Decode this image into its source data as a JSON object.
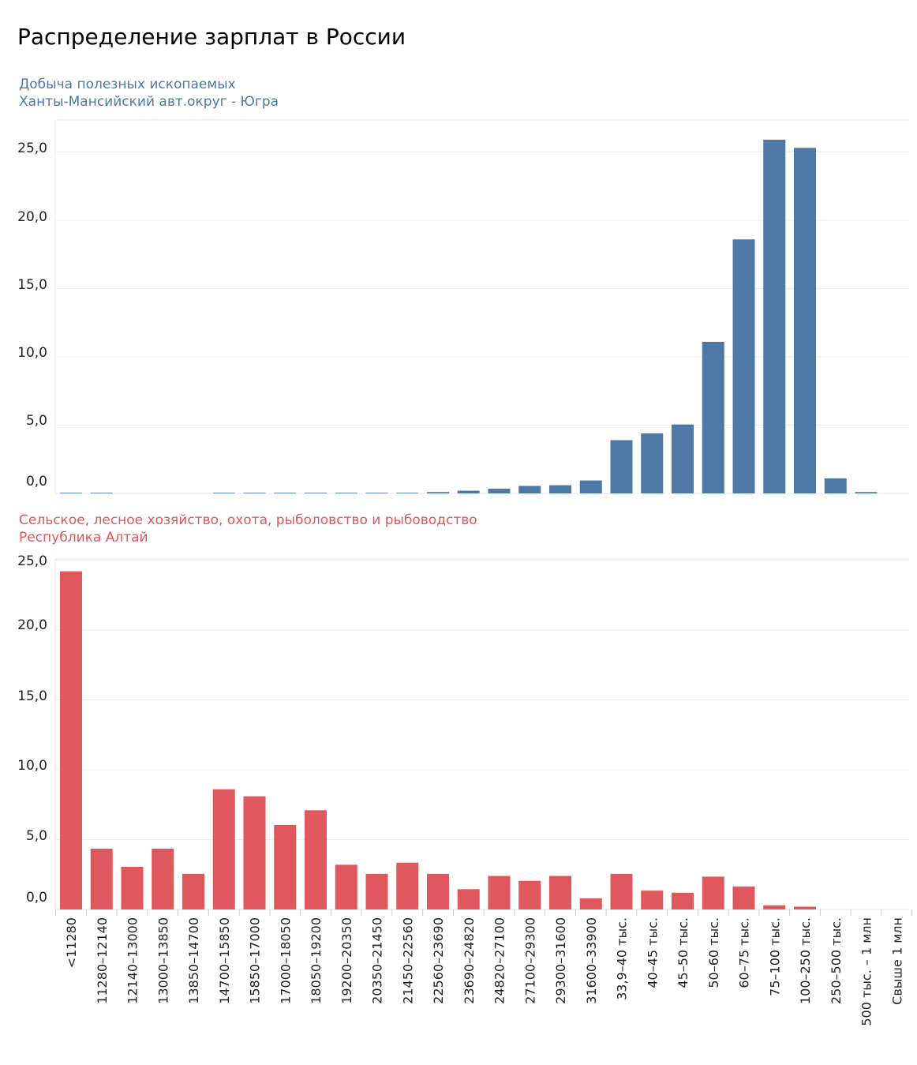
{
  "title": "Распределение зарплат в России",
  "chart_data": [
    {
      "type": "bar",
      "title": "Добыча полезных ископаемых",
      "subtitle": "Ханты-Мансийский авт.округ - Югра",
      "color": "#4e79a7",
      "ylim": [
        0,
        26
      ],
      "yticks": [
        "0,0",
        "5,0",
        "10,0",
        "15,0",
        "20,0",
        "25,0"
      ],
      "categories": [
        "<11280",
        "11280–12140",
        "12140–13000",
        "13000–13850",
        "13850–14700",
        "14700–15850",
        "15850–17000",
        "17000–18050",
        "18050–19200",
        "19200–20350",
        "20350–21450",
        "21450–22560",
        "22560–23690",
        "23690–24820",
        "24820–27100",
        "27100–29300",
        "29300–31600",
        "31600–33900",
        "33,9–40 тыс.",
        "40–45 тыс.",
        "45–50 тыс.",
        "50–60 тыс.",
        "60–75 тыс.",
        "75–100 тыс.",
        "100–250 тыс.",
        "250–500 тыс.",
        "500 тыс. – 1 млн",
        "Свыше 1 млн"
      ],
      "values": [
        0.05,
        0.05,
        0,
        0,
        0,
        0.05,
        0.05,
        0.05,
        0.05,
        0.05,
        0.05,
        0.05,
        0.1,
        0.2,
        0.35,
        0.55,
        0.6,
        0.95,
        3.9,
        4.4,
        5.05,
        11.1,
        18.6,
        25.9,
        25.3,
        1.1,
        0.1,
        0
      ]
    },
    {
      "type": "bar",
      "title": "Сельское, лесное хозяйство, охота, рыболовство и рыбоводство",
      "subtitle": "Республика Алтай",
      "color": "#e0575e",
      "ylim": [
        0,
        24.5
      ],
      "yticks": [
        "0,0",
        "5,0",
        "10,0",
        "15,0",
        "20,0",
        "25,0"
      ],
      "categories": [
        "<11280",
        "11280–12140",
        "12140–13000",
        "13000–13850",
        "13850–14700",
        "14700–15850",
        "15850–17000",
        "17000–18050",
        "18050–19200",
        "19200–20350",
        "20350–21450",
        "21450–22560",
        "22560–23690",
        "23690–24820",
        "24820–27100",
        "27100–29300",
        "29300–31600",
        "31600–33900",
        "33,9–40 тыс.",
        "40–45 тыс.",
        "45–50 тыс.",
        "50–60 тыс.",
        "60–75 тыс.",
        "75–100 тыс.",
        "100–250 тыс.",
        "250–500 тыс.",
        "500 тыс. – 1 млн",
        "Свыше 1 млн"
      ],
      "values": [
        24.2,
        4.35,
        3.05,
        4.35,
        2.55,
        8.6,
        8.1,
        6.05,
        7.1,
        3.2,
        2.55,
        3.35,
        2.55,
        1.45,
        2.4,
        2.05,
        2.4,
        0.8,
        2.55,
        1.35,
        1.2,
        2.35,
        1.65,
        0.3,
        0.2,
        0,
        0,
        0
      ]
    }
  ]
}
